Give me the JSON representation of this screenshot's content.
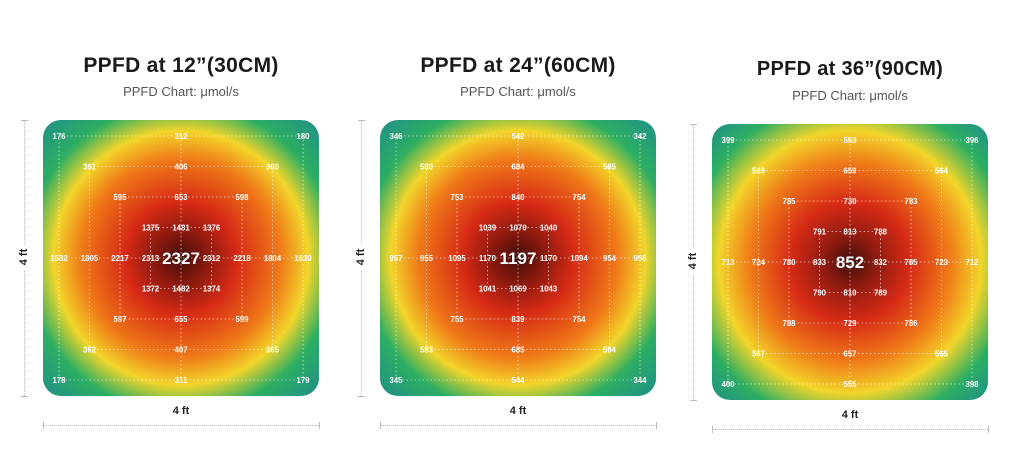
{
  "chart_data": [
    {
      "type": "heatmap",
      "title": "PPFD at 12”(30CM)",
      "subtitle": "PPFD Chart: μmol/s",
      "xlabel": "4 ft",
      "ylabel": "4 ft",
      "center_value": "2327",
      "points": [
        {
          "row": 0,
          "col": 0,
          "value": "176"
        },
        {
          "row": 0,
          "col": 4,
          "value": "312"
        },
        {
          "row": 0,
          "col": 8,
          "value": "180"
        },
        {
          "row": 1,
          "col": 1,
          "value": "361"
        },
        {
          "row": 1,
          "col": 4,
          "value": "406"
        },
        {
          "row": 1,
          "col": 7,
          "value": "360"
        },
        {
          "row": 2,
          "col": 2,
          "value": "595"
        },
        {
          "row": 2,
          "col": 4,
          "value": "653"
        },
        {
          "row": 2,
          "col": 6,
          "value": "598"
        },
        {
          "row": 3,
          "col": 3,
          "value": "1375"
        },
        {
          "row": 3,
          "col": 4,
          "value": "1481"
        },
        {
          "row": 3,
          "col": 5,
          "value": "1376"
        },
        {
          "row": 4,
          "col": 0,
          "value": "1632"
        },
        {
          "row": 4,
          "col": 1,
          "value": "1805"
        },
        {
          "row": 4,
          "col": 2,
          "value": "2217"
        },
        {
          "row": 4,
          "col": 3,
          "value": "2313"
        },
        {
          "row": 4,
          "col": 5,
          "value": "2312"
        },
        {
          "row": 4,
          "col": 6,
          "value": "2218"
        },
        {
          "row": 4,
          "col": 7,
          "value": "1804"
        },
        {
          "row": 4,
          "col": 8,
          "value": "1630"
        },
        {
          "row": 5,
          "col": 3,
          "value": "1372"
        },
        {
          "row": 5,
          "col": 4,
          "value": "1482"
        },
        {
          "row": 5,
          "col": 5,
          "value": "1374"
        },
        {
          "row": 6,
          "col": 2,
          "value": "597"
        },
        {
          "row": 6,
          "col": 4,
          "value": "655"
        },
        {
          "row": 6,
          "col": 6,
          "value": "599"
        },
        {
          "row": 7,
          "col": 1,
          "value": "362"
        },
        {
          "row": 7,
          "col": 4,
          "value": "407"
        },
        {
          "row": 7,
          "col": 7,
          "value": "365"
        },
        {
          "row": 8,
          "col": 0,
          "value": "178"
        },
        {
          "row": 8,
          "col": 4,
          "value": "311"
        },
        {
          "row": 8,
          "col": 8,
          "value": "179"
        }
      ]
    },
    {
      "type": "heatmap",
      "title": "PPFD at 24”(60CM)",
      "subtitle": "PPFD Chart: μmol/s",
      "xlabel": "4 ft",
      "ylabel": "4 ft",
      "center_value": "1197",
      "points": [
        {
          "row": 0,
          "col": 0,
          "value": "346"
        },
        {
          "row": 0,
          "col": 4,
          "value": "542"
        },
        {
          "row": 0,
          "col": 8,
          "value": "342"
        },
        {
          "row": 1,
          "col": 1,
          "value": "580"
        },
        {
          "row": 1,
          "col": 4,
          "value": "684"
        },
        {
          "row": 1,
          "col": 7,
          "value": "585"
        },
        {
          "row": 2,
          "col": 2,
          "value": "753"
        },
        {
          "row": 2,
          "col": 4,
          "value": "840"
        },
        {
          "row": 2,
          "col": 6,
          "value": "754"
        },
        {
          "row": 3,
          "col": 3,
          "value": "1039"
        },
        {
          "row": 3,
          "col": 4,
          "value": "1070"
        },
        {
          "row": 3,
          "col": 5,
          "value": "1040"
        },
        {
          "row": 4,
          "col": 0,
          "value": "957"
        },
        {
          "row": 4,
          "col": 1,
          "value": "955"
        },
        {
          "row": 4,
          "col": 2,
          "value": "1095"
        },
        {
          "row": 4,
          "col": 3,
          "value": "1170"
        },
        {
          "row": 4,
          "col": 5,
          "value": "1170"
        },
        {
          "row": 4,
          "col": 6,
          "value": "1094"
        },
        {
          "row": 4,
          "col": 7,
          "value": "954"
        },
        {
          "row": 4,
          "col": 8,
          "value": "956"
        },
        {
          "row": 5,
          "col": 3,
          "value": "1041"
        },
        {
          "row": 5,
          "col": 4,
          "value": "1069"
        },
        {
          "row": 5,
          "col": 5,
          "value": "1043"
        },
        {
          "row": 6,
          "col": 2,
          "value": "755"
        },
        {
          "row": 6,
          "col": 4,
          "value": "839"
        },
        {
          "row": 6,
          "col": 6,
          "value": "754"
        },
        {
          "row": 7,
          "col": 1,
          "value": "583"
        },
        {
          "row": 7,
          "col": 4,
          "value": "685"
        },
        {
          "row": 7,
          "col": 7,
          "value": "584"
        },
        {
          "row": 8,
          "col": 0,
          "value": "345"
        },
        {
          "row": 8,
          "col": 4,
          "value": "544"
        },
        {
          "row": 8,
          "col": 8,
          "value": "344"
        }
      ]
    },
    {
      "type": "heatmap",
      "title": "PPFD at 36”(90CM)",
      "subtitle": "PPFD Chart: μmol/s",
      "xlabel": "4 ft",
      "ylabel": "4 ft",
      "center_value": "852",
      "points": [
        {
          "row": 0,
          "col": 0,
          "value": "399"
        },
        {
          "row": 0,
          "col": 4,
          "value": "553"
        },
        {
          "row": 0,
          "col": 8,
          "value": "396"
        },
        {
          "row": 1,
          "col": 1,
          "value": "569"
        },
        {
          "row": 1,
          "col": 4,
          "value": "659"
        },
        {
          "row": 1,
          "col": 7,
          "value": "564"
        },
        {
          "row": 2,
          "col": 2,
          "value": "785"
        },
        {
          "row": 2,
          "col": 4,
          "value": "730"
        },
        {
          "row": 2,
          "col": 6,
          "value": "783"
        },
        {
          "row": 3,
          "col": 3,
          "value": "791"
        },
        {
          "row": 3,
          "col": 4,
          "value": "813"
        },
        {
          "row": 3,
          "col": 5,
          "value": "788"
        },
        {
          "row": 4,
          "col": 0,
          "value": "713"
        },
        {
          "row": 4,
          "col": 1,
          "value": "724"
        },
        {
          "row": 4,
          "col": 2,
          "value": "780"
        },
        {
          "row": 4,
          "col": 3,
          "value": "833"
        },
        {
          "row": 4,
          "col": 5,
          "value": "832"
        },
        {
          "row": 4,
          "col": 6,
          "value": "785"
        },
        {
          "row": 4,
          "col": 7,
          "value": "723"
        },
        {
          "row": 4,
          "col": 8,
          "value": "712"
        },
        {
          "row": 5,
          "col": 3,
          "value": "790"
        },
        {
          "row": 5,
          "col": 4,
          "value": "810"
        },
        {
          "row": 5,
          "col": 5,
          "value": "789"
        },
        {
          "row": 6,
          "col": 2,
          "value": "788"
        },
        {
          "row": 6,
          "col": 4,
          "value": "729"
        },
        {
          "row": 6,
          "col": 6,
          "value": "786"
        },
        {
          "row": 7,
          "col": 1,
          "value": "567"
        },
        {
          "row": 7,
          "col": 4,
          "value": "657"
        },
        {
          "row": 7,
          "col": 7,
          "value": "565"
        },
        {
          "row": 8,
          "col": 0,
          "value": "400"
        },
        {
          "row": 8,
          "col": 4,
          "value": "555"
        },
        {
          "row": 8,
          "col": 8,
          "value": "398"
        }
      ]
    }
  ],
  "colors": {
    "core": "#3d0f0a",
    "red": "#d62a15",
    "orange": "#f07a18",
    "yellow": "#f2d52a",
    "green": "#2cae62",
    "teal": "#1f8c8c"
  }
}
